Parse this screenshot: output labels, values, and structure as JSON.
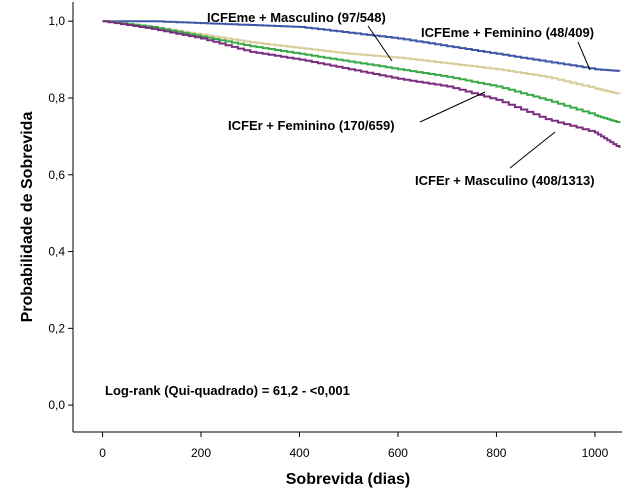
{
  "chart_data": {
    "type": "line",
    "xlabel": "Sobrevida (dias)",
    "ylabel": "Probabilidade de Sobrevida",
    "xlim": [
      -60,
      1055
    ],
    "ylim": [
      -0.07,
      1.05
    ],
    "x_ticks": [
      {
        "value": 0,
        "label": "0"
      },
      {
        "value": 200,
        "label": "200"
      },
      {
        "value": 400,
        "label": "400"
      },
      {
        "value": 600,
        "label": "600"
      },
      {
        "value": 800,
        "label": "800"
      },
      {
        "value": 1000,
        "label": "1000"
      }
    ],
    "y_ticks": [
      {
        "value": 0.0,
        "label": "0,0"
      },
      {
        "value": 0.2,
        "label": "0,2"
      },
      {
        "value": 0.4,
        "label": "0,4"
      },
      {
        "value": 0.6,
        "label": "0,6"
      },
      {
        "value": 0.8,
        "label": "0,8"
      },
      {
        "value": 1.0,
        "label": "1,0"
      }
    ],
    "grid": false,
    "legend": "none",
    "series": [
      {
        "name": "ICFEme + Masculino (97/548)",
        "color": "#3f57a6",
        "points": [
          [
            0,
            1.0
          ],
          [
            100,
            1.0
          ],
          [
            200,
            0.995
          ],
          [
            300,
            0.99
          ],
          [
            400,
            0.985
          ],
          [
            500,
            0.97
          ],
          [
            600,
            0.955
          ],
          [
            700,
            0.935
          ],
          [
            800,
            0.915
          ],
          [
            900,
            0.895
          ],
          [
            1000,
            0.875
          ],
          [
            1050,
            0.87
          ]
        ]
      },
      {
        "name": "ICFEme + Feminino (48/409)",
        "color": "#d8cc98",
        "points": [
          [
            0,
            1.0
          ],
          [
            100,
            0.985
          ],
          [
            200,
            0.965
          ],
          [
            300,
            0.945
          ],
          [
            400,
            0.93
          ],
          [
            500,
            0.915
          ],
          [
            600,
            0.905
          ],
          [
            700,
            0.89
          ],
          [
            800,
            0.875
          ],
          [
            900,
            0.855
          ],
          [
            1000,
            0.825
          ],
          [
            1050,
            0.81
          ]
        ]
      },
      {
        "name": "ICFEr + Feminino (170/659)",
        "color": "#3aaa48",
        "points": [
          [
            0,
            1.0
          ],
          [
            100,
            0.985
          ],
          [
            200,
            0.96
          ],
          [
            300,
            0.935
          ],
          [
            400,
            0.915
          ],
          [
            500,
            0.895
          ],
          [
            600,
            0.875
          ],
          [
            700,
            0.855
          ],
          [
            800,
            0.83
          ],
          [
            900,
            0.795
          ],
          [
            1000,
            0.755
          ],
          [
            1050,
            0.735
          ]
        ]
      },
      {
        "name": "ICFEr + Masculino (408/1313)",
        "color": "#7b2d80",
        "points": [
          [
            0,
            1.0
          ],
          [
            100,
            0.98
          ],
          [
            200,
            0.955
          ],
          [
            300,
            0.92
          ],
          [
            400,
            0.9
          ],
          [
            500,
            0.875
          ],
          [
            600,
            0.85
          ],
          [
            700,
            0.83
          ],
          [
            800,
            0.795
          ],
          [
            900,
            0.745
          ],
          [
            1000,
            0.71
          ],
          [
            1050,
            0.67
          ]
        ]
      }
    ],
    "annotations": {
      "ICFEme_Masculino": "ICFEme + Masculino (97/548)",
      "ICFEme_Feminino": "ICFEme + Feminino (48/409)",
      "ICFEr_Feminino": "ICFEr + Feminino (170/659)",
      "ICFEr_Masculino": "ICFEr + Masculino (408/1313)",
      "logrank": "Log-rank (Qui-quadrado) = 61,2 - <0,001"
    }
  }
}
